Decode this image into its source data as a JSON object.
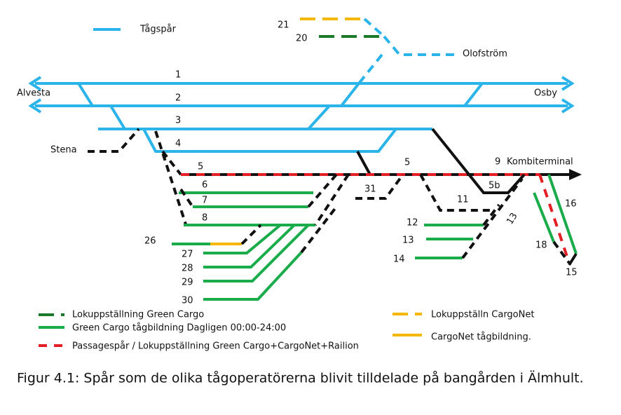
{
  "legend_top": "Tågspår",
  "labels": [
    "21",
    "20",
    "Olofström",
    "1",
    "Alvesta",
    "2",
    "Osby",
    "3",
    "Stena",
    "4",
    "5",
    "9",
    "Kombiterminal",
    "5",
    "31",
    "6",
    "5b",
    "11",
    "7",
    "16",
    "8",
    "12",
    "13",
    "13",
    "26",
    "27",
    "18",
    "14",
    "28",
    "15",
    "29",
    "30"
  ],
  "legend": [
    "Lokuppställning Green Cargo",
    "Green Cargo tågbildning Dagligen 00:00-24:00",
    "Passagespår / Lokuppställning Green Cargo+CargoNet+Railion",
    "Lokuppställn CargoNet",
    "CargoNet tågbildning."
  ],
  "caption": "Figur 4.1: Spår som de olika tågoperatörerna blivit tilldelade på bangården i Älmhult."
}
